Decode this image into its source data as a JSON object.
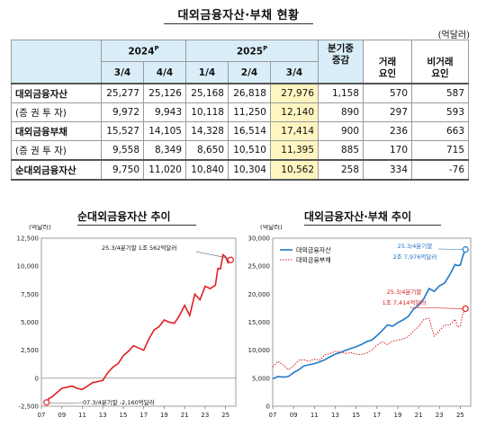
{
  "title": "대외금융자산·부채 현황",
  "unit": "(억달러)",
  "table": {
    "year_2024": "2024",
    "year_2024_sup": "P",
    "year_2025": "2025",
    "year_2025_sup": "P",
    "quarters": [
      "3/4",
      "4/4",
      "1/4",
      "2/4",
      "3/4"
    ],
    "change_header": "분기중 증감",
    "change_header_l1": "분기중",
    "change_header_l2": "증감",
    "trade_factor_l1": "거래",
    "trade_factor_l2": "요인",
    "nontrade_factor_l1": "비거래",
    "nontrade_factor_l2": "요인",
    "rows": [
      {
        "label": "대외금융자산",
        "values": [
          "25,277",
          "25,126",
          "25,168",
          "26,818",
          "27,976"
        ],
        "change": "1,158",
        "trade": "570",
        "nontrade": "587"
      },
      {
        "label": "(증 권 투 자)",
        "values": [
          "9,972",
          "9,943",
          "10,118",
          "11,250",
          "12,140"
        ],
        "change": "890",
        "trade": "297",
        "nontrade": "593"
      },
      {
        "label": "대외금융부채",
        "values": [
          "15,527",
          "14,105",
          "14,328",
          "16,514",
          "17,414"
        ],
        "change": "900",
        "trade": "236",
        "nontrade": "663"
      },
      {
        "label": "(증 권 투 자)",
        "values": [
          "9,558",
          "8,349",
          "8,650",
          "10,510",
          "11,395"
        ],
        "change": "885",
        "trade": "170",
        "nontrade": "715"
      },
      {
        "label": "순대외금융자산",
        "values": [
          "9,750",
          "11,020",
          "10,840",
          "10,304",
          "10,562"
        ],
        "change": "258",
        "trade": "334",
        "nontrade": "-76"
      }
    ]
  },
  "chart_data": [
    {
      "type": "line",
      "title": "순대외금융자산 추이",
      "ylabel": "(억달러)",
      "x_ticks": [
        "07",
        "09",
        "11",
        "13",
        "15",
        "17",
        "19",
        "21",
        "23",
        "25"
      ],
      "y_ticks": [
        "12,500",
        "10,000",
        "7,500",
        "5,000",
        "2,500",
        "0",
        "-2,500"
      ],
      "ylim": [
        -2500,
        12500
      ],
      "xlim": [
        2007,
        2026
      ],
      "series": [
        {
          "color": "#e02020",
          "x": [
            2007.5,
            2007.75,
            2008.0,
            2008.25,
            2008.5,
            2008.75,
            2009.0,
            2009.5,
            2010.0,
            2010.5,
            2011.0,
            2011.5,
            2012.0,
            2012.5,
            2013.0,
            2013.5,
            2014.0,
            2014.5,
            2015.0,
            2015.5,
            2016.0,
            2016.5,
            2017.0,
            2017.5,
            2018.0,
            2018.5,
            2019.0,
            2019.5,
            2020.0,
            2020.5,
            2021.0,
            2021.5,
            2022.0,
            2022.5,
            2023.0,
            2023.5,
            2024.0,
            2024.25,
            2024.5,
            2024.75,
            2025.0,
            2025.25,
            2025.5
          ],
          "values": [
            -2160,
            -1800,
            -1700,
            -1500,
            -1300,
            -1100,
            -900,
            -800,
            -700,
            -900,
            -1000,
            -700,
            -400,
            -300,
            -200,
            500,
            1000,
            1300,
            2000,
            2400,
            2900,
            2700,
            2500,
            3500,
            4300,
            4600,
            5200,
            5000,
            4900,
            5600,
            6500,
            5600,
            7500,
            7000,
            8200,
            8000,
            8300,
            9800,
            9750,
            11020,
            10840,
            10304,
            10562
          ]
        }
      ],
      "annotations": [
        "25.3/4분기말 1조 562억달러",
        "07.3/4분기말 -2,160억달러"
      ]
    },
    {
      "type": "line",
      "title": "대외금융자산·부채 추이",
      "ylabel": "(억달러)",
      "x_ticks": [
        "07",
        "09",
        "11",
        "13",
        "15",
        "17",
        "19",
        "21",
        "23",
        "25"
      ],
      "y_ticks": [
        "30,000",
        "25,000",
        "20,000",
        "15,000",
        "10,000",
        "5,000",
        "0"
      ],
      "ylim": [
        0,
        30000
      ],
      "xlim": [
        2007,
        2026
      ],
      "legend_position": "top-left",
      "series": [
        {
          "name": "대외금융자산",
          "color": "#1f78c8",
          "x": [
            2007.0,
            2007.5,
            2008.0,
            2008.5,
            2009.0,
            2009.5,
            2010.0,
            2010.5,
            2011.0,
            2011.5,
            2012.0,
            2012.5,
            2013.0,
            2013.5,
            2014.0,
            2014.5,
            2015.0,
            2015.5,
            2016.0,
            2016.5,
            2017.0,
            2017.5,
            2018.0,
            2018.5,
            2019.0,
            2019.5,
            2020.0,
            2020.5,
            2021.0,
            2021.5,
            2022.0,
            2022.5,
            2023.0,
            2023.5,
            2024.0,
            2024.5,
            2024.75,
            2025.0,
            2025.25,
            2025.5
          ],
          "values": [
            4900,
            5300,
            5200,
            5300,
            6000,
            6500,
            7200,
            7400,
            7600,
            7900,
            8300,
            8800,
            9300,
            9600,
            10000,
            10300,
            10600,
            11000,
            11500,
            11800,
            12600,
            13500,
            14500,
            14300,
            14900,
            15400,
            16000,
            17300,
            18000,
            19200,
            21000,
            20500,
            21500,
            22000,
            23500,
            25277,
            25126,
            25168,
            26818,
            27976
          ]
        },
        {
          "name": "대외금융부채",
          "color": "#d81e1e",
          "dashed": true,
          "x": [
            2007.0,
            2007.5,
            2008.0,
            2008.5,
            2009.0,
            2009.5,
            2010.0,
            2010.5,
            2011.0,
            2011.5,
            2012.0,
            2012.5,
            2013.0,
            2013.5,
            2014.0,
            2014.5,
            2015.0,
            2015.5,
            2016.0,
            2016.5,
            2017.0,
            2017.5,
            2018.0,
            2018.5,
            2019.0,
            2019.5,
            2020.0,
            2020.5,
            2021.0,
            2021.5,
            2022.0,
            2022.5,
            2023.0,
            2023.5,
            2024.0,
            2024.5,
            2024.75,
            2025.0,
            2025.25,
            2025.5
          ],
          "values": [
            7000,
            8000,
            7400,
            6500,
            7200,
            8200,
            8300,
            8000,
            8400,
            8200,
            9200,
            9400,
            9800,
            9700,
            9400,
            9600,
            9300,
            9200,
            9500,
            10000,
            10900,
            11500,
            11000,
            11600,
            11800,
            12000,
            12400,
            13400,
            14200,
            15500,
            15700,
            12500,
            13500,
            14500,
            14500,
            15527,
            14105,
            14328,
            16514,
            17414
          ]
        }
      ],
      "annotations": [
        "25.3/4분기말",
        "2조 7,976억달러",
        "25.3/4분기말",
        "1조 7,414억달러"
      ]
    }
  ]
}
